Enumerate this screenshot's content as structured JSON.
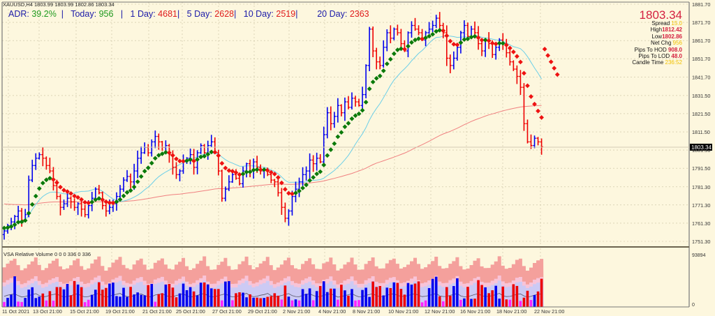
{
  "header": {
    "symbol_line": "XAUUSD,H4  1803.99 1803.99 1802.86 1803.34",
    "adr_label": "ADR:",
    "adr_value": "39.2%",
    "today_label": "Today:",
    "today_value": "956",
    "d1_label": "1 Day:",
    "d1_value": "4681",
    "d5_label": "5 Day:",
    "d5_value": "2628",
    "d10_label": "10 Day:",
    "d10_value": "2519",
    "d20_label": "20 Day:",
    "d20_value": "2363",
    "sep": "|"
  },
  "info_panel": {
    "price": "1803.34",
    "spread_label": "Spread",
    "spread_value": "15.0",
    "high_label": "High",
    "high_value": "1812.42",
    "low_label": "Low",
    "low_value": "1802.86",
    "netchg_label": "Net Chg",
    "netchg_value": "956",
    "pips_hod_label": "Pips To HOD",
    "pips_hod_value": "908.0",
    "pips_lod_label": "Pips To LOD",
    "pips_lod_value": "48.0",
    "candle_time_label": "Candle Time",
    "candle_time_value": "236:52"
  },
  "subwindow": {
    "title": "VSA Relative Volume 0 0 0 336 0 336",
    "axis_max": "93894",
    "axis_min": "0"
  },
  "colors": {
    "background": "#fdf7de",
    "bull_bar": "#0000ee",
    "bear_bar": "#ee0000",
    "trend_up": "#0a7a0a",
    "trend_down": "#ee1111",
    "ma_fast": "#6ccfe8",
    "ma_slow": "#f08080",
    "grid": "#c8c0a0",
    "current_price_bg": "#000000",
    "vol_band_top": "#f4a09c",
    "vol_band_mid": "#f8c4d8",
    "vol_band_low": "#cccaf4",
    "vol_low_magenta": "#ff22ff"
  },
  "chart_data": [
    {
      "type": "ohlc",
      "title": "XAUUSD,H4",
      "current_price": 1803.34,
      "ylim": [
        1748.0,
        1884.0
      ],
      "yticks": [
        1881.7,
        1871.7,
        1861.7,
        1851.7,
        1841.7,
        1831.5,
        1821.5,
        1811.5,
        1801.5,
        1791.5,
        1781.3,
        1771.3,
        1761.3,
        1751.3
      ],
      "xticks": [
        "11 Oct 2021",
        "13 Oct 21:00",
        "15 Oct 21:00",
        "19 Oct 21:00",
        "21 Oct 21:00",
        "25 Oct 21:00",
        "27 Oct 21:00",
        "29 Oct 21:00",
        "2 Nov 21:00",
        "4 Nov 21:00",
        "8 Nov 21:00",
        "10 Nov 21:00",
        "12 Nov 21:00",
        "16 Nov 21:00",
        "18 Nov 21:00",
        "22 Nov 21:00"
      ],
      "closes": [
        1757,
        1760,
        1762,
        1765,
        1768,
        1763,
        1766,
        1785,
        1793,
        1797,
        1799,
        1797,
        1793,
        1790,
        1782,
        1776,
        1770,
        1772,
        1775,
        1773,
        1770,
        1772,
        1769,
        1766,
        1771,
        1775,
        1780,
        1778,
        1771,
        1768,
        1770,
        1772,
        1776,
        1780,
        1785,
        1787,
        1784,
        1790,
        1797,
        1800,
        1803,
        1800,
        1806,
        1809,
        1806,
        1803,
        1804,
        1799,
        1792,
        1788,
        1790,
        1795,
        1797,
        1799,
        1792,
        1800,
        1804,
        1800,
        1804,
        1806,
        1800,
        1790,
        1775,
        1780,
        1784,
        1788,
        1786,
        1783,
        1790,
        1794,
        1790,
        1795,
        1792,
        1790,
        1791,
        1788,
        1785,
        1784,
        1778,
        1770,
        1764,
        1768,
        1776,
        1780,
        1784,
        1788,
        1790,
        1796,
        1794,
        1797,
        1795,
        1810,
        1822,
        1816,
        1820,
        1826,
        1822,
        1828,
        1825,
        1830,
        1828,
        1826,
        1832,
        1848,
        1868,
        1856,
        1850,
        1848,
        1858,
        1866,
        1863,
        1868,
        1866,
        1860,
        1856,
        1866,
        1870,
        1868,
        1866,
        1862,
        1866,
        1868,
        1870,
        1874,
        1870,
        1866,
        1852,
        1848,
        1852,
        1858,
        1866,
        1870,
        1864,
        1868,
        1866,
        1860,
        1856,
        1862,
        1860,
        1854,
        1858,
        1862,
        1860,
        1855,
        1850,
        1846,
        1842,
        1836,
        1816,
        1806,
        1804,
        1808,
        1806,
        1803.34
      ],
      "series": [
        {
          "name": "Trend dots (green up / red down)",
          "style": "dotted",
          "start": 1762,
          "peak": 1866,
          "end": 1843
        },
        {
          "name": "Fast MA (light blue)",
          "style": "line",
          "start": 1764,
          "peak": 1851,
          "end": 1838
        },
        {
          "name": "Slow MA (salmon)",
          "style": "line",
          "start": 1772,
          "end": 1813
        }
      ]
    },
    {
      "type": "bar",
      "title": "VSA Relative Volume 0 0 0 336 0 336",
      "ylim": [
        0,
        93894
      ],
      "legend": [
        "Bull volume (blue)",
        "Bear volume (red)",
        "Low volume (magenta)",
        "Volume average (dark line)",
        "Relative volume bands (salmon / pink / lavender)"
      ]
    }
  ]
}
